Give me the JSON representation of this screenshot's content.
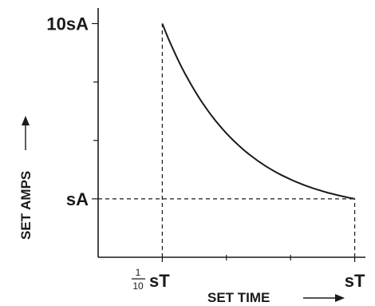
{
  "chart_data": {
    "type": "line",
    "x_axis": {
      "label": "SET TIME",
      "ticks": [
        {
          "value": 0.1,
          "label_num": "1",
          "label_den": "10",
          "label_suffix": "sT"
        },
        {
          "value": 1.0,
          "label": "sT"
        }
      ],
      "minor_ticks": [
        0.4,
        0.7
      ]
    },
    "y_axis": {
      "label": "SET AMPS",
      "ticks": [
        {
          "value": 1,
          "label": "sA"
        },
        {
          "value": 10,
          "label": "10sA"
        }
      ],
      "minor_ticks": [
        4,
        7
      ]
    },
    "xlim": [
      -0.2,
      1.05
    ],
    "ylim": [
      -2,
      10.8
    ],
    "series": [
      {
        "points": [
          [
            0.1,
            10
          ],
          [
            1.0,
            1
          ]
        ],
        "curve": "decaying"
      }
    ],
    "guides": [
      {
        "from": [
          0.1,
          -2
        ],
        "to": [
          0.1,
          10
        ]
      },
      {
        "from": [
          -0.2,
          1
        ],
        "to": [
          1.0,
          1
        ]
      },
      {
        "from": [
          1.0,
          -2
        ],
        "to": [
          1.0,
          1
        ]
      }
    ],
    "grid": false,
    "legend": "none"
  }
}
